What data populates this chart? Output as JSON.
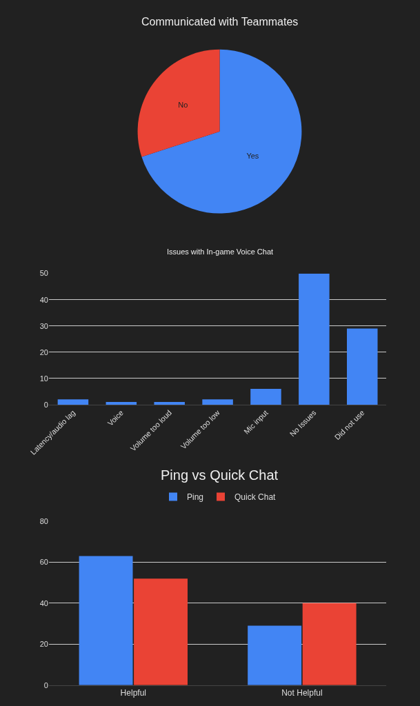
{
  "chart_data": [
    {
      "type": "pie",
      "title": "Communicated with Teammates",
      "categories": [
        "Yes",
        "No"
      ],
      "values": [
        70,
        30
      ],
      "colors": [
        "#4285f4",
        "#ea4335"
      ]
    },
    {
      "type": "bar",
      "title": "Issues with In-game Voice Chat",
      "categories": [
        "Latency/audio lag",
        "Voice",
        "Volume too loud",
        "Volume too low",
        "Mic input",
        "No Issues",
        "Did not use"
      ],
      "values": [
        2,
        1,
        1,
        2,
        6,
        50,
        29
      ],
      "color": "#4285f4",
      "ylim": [
        0,
        50
      ],
      "yticks": [
        0,
        10,
        20,
        30,
        40,
        50
      ],
      "grid": "y"
    },
    {
      "type": "bar",
      "title": "Ping vs Quick Chat",
      "categories": [
        "Helpful",
        "Not Helpful"
      ],
      "series": [
        {
          "name": "Ping",
          "color": "#4285f4",
          "values": [
            63,
            29
          ]
        },
        {
          "name": "Quick Chat",
          "color": "#ea4335",
          "values": [
            52,
            40
          ]
        }
      ],
      "ylim": [
        0,
        80
      ],
      "yticks": [
        0,
        20,
        40,
        60,
        80
      ],
      "grid": "y",
      "legend": "top"
    }
  ]
}
